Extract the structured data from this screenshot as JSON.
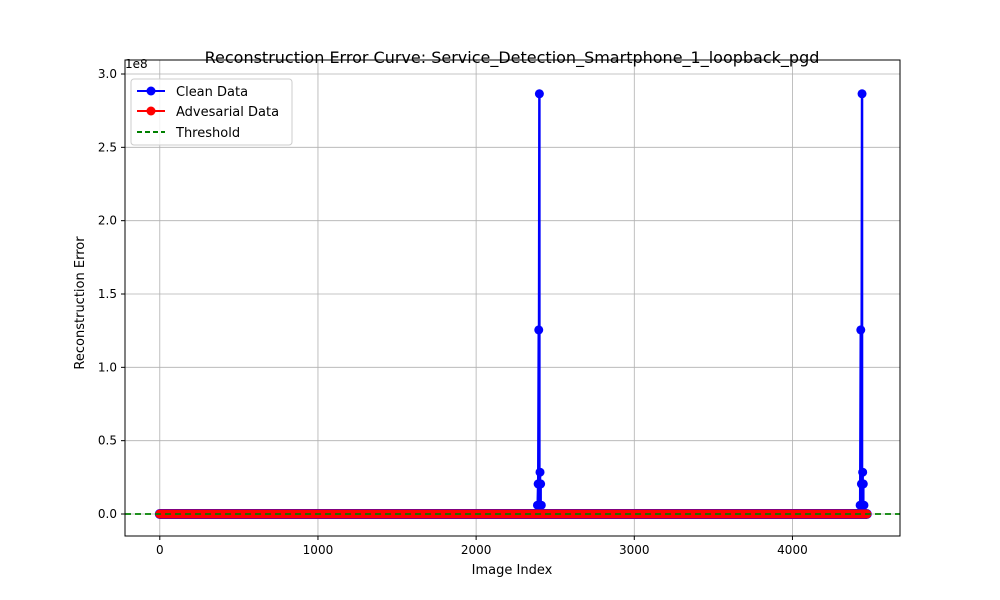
{
  "chart_data": {
    "type": "line",
    "title": "Reconstruction Error Curve: Service_Detection_Smartphone_1_loopback_pgd",
    "xlabel": "Image Index",
    "ylabel": "Reconstruction Error",
    "y_multiplier_label": "1e8",
    "xlim": [
      -220,
      4680
    ],
    "ylim": [
      -15000000.0,
      300000000.0
    ],
    "x_ticks": [
      0,
      1000,
      2000,
      3000,
      4000
    ],
    "x_tick_labels": [
      "0",
      "1000",
      "2000",
      "3000",
      "4000"
    ],
    "y_ticks": [
      0,
      50000000.0,
      100000000.0,
      150000000.0,
      200000000.0,
      250000000.0,
      300000000.0
    ],
    "y_tick_labels": [
      "0.0",
      "0.5",
      "1.0",
      "1.5",
      "2.0",
      "2.5",
      "3.0"
    ],
    "grid": true,
    "legend_position": "top-left",
    "colors": {
      "clean": "#0000ff",
      "adversarial": "#ff0000",
      "threshold": "#008000"
    },
    "series": [
      {
        "name": "Clean Data",
        "color": "#0000ff",
        "baseline": {
          "x_start": 0,
          "x_end": 4470,
          "y": 0
        },
        "spikes": [
          {
            "x": 2388,
            "peak": 6000000
          },
          {
            "x": 2392,
            "peak": 20500000
          },
          {
            "x": 2396,
            "peak": 125500000
          },
          {
            "x": 2400,
            "peak": 286500000
          },
          {
            "x": 2404,
            "peak": 28500000
          },
          {
            "x": 2408,
            "peak": 20500000
          },
          {
            "x": 2412,
            "peak": 6000000
          },
          {
            "x": 4428,
            "peak": 6000000
          },
          {
            "x": 4432,
            "peak": 125500000
          },
          {
            "x": 4436,
            "peak": 20500000
          },
          {
            "x": 4440,
            "peak": 286500000
          },
          {
            "x": 4444,
            "peak": 28500000
          },
          {
            "x": 4448,
            "peak": 20500000
          },
          {
            "x": 4452,
            "peak": 6000000
          }
        ]
      },
      {
        "name": "Advesarial Data",
        "color": "#ff0000",
        "baseline": {
          "x_start": 0,
          "x_end": 4470,
          "y": 0
        }
      },
      {
        "name": "Threshold",
        "color": "#008000",
        "style": "dashed",
        "y": 0
      }
    ]
  }
}
